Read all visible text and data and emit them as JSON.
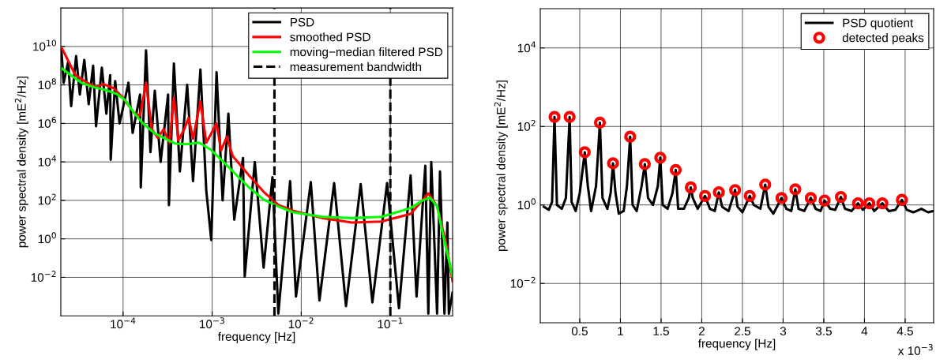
{
  "chart_data": [
    {
      "type": "line",
      "xlabel": "frequency [Hz]",
      "ylabel": "power spectral density [mE$^{2}$/Hz]",
      "log": "xy",
      "grid": true,
      "legend": "top right",
      "line_style": "solid",
      "marker": "none",
      "xlim": [
        2e-05,
        0.5
      ],
      "ylim": [
        0.0001,
        1000000000000.0
      ],
      "xticks": [
        {
          "value": 0.0001,
          "label": "10$^{−4}$"
        },
        {
          "value": 0.001,
          "label": "10$^{−3}$"
        },
        {
          "value": 0.01,
          "label": "10$^{−2}$"
        },
        {
          "value": 0.1,
          "label": "10$^{−1}$"
        }
      ],
      "yticks": [
        {
          "value": 0.01,
          "label": "10$^{−2}$"
        },
        {
          "value": 1,
          "label": "10$^{0}$"
        },
        {
          "value": 100,
          "label": "10$^{2}$"
        },
        {
          "value": 10000,
          "label": "10$^{4}$"
        },
        {
          "value": 1000000,
          "label": "10$^{6}$"
        },
        {
          "value": 100000000,
          "label": "10$^{8}$"
        },
        {
          "value": 10000000000,
          "label": "10$^{10}$"
        }
      ],
      "ref_lines": [
        {
          "axis": "x",
          "value": 0.005,
          "label": "measurement bandwidth",
          "color": "#000000",
          "line_style": "dashed"
        },
        {
          "axis": "x",
          "value": 0.1,
          "color": "#000000",
          "line_style": "dashed"
        }
      ],
      "series": [
        {
          "type": "line",
          "name": "PSD",
          "color": "#000000",
          "x": [
            2.03e-05,
            2.15e-05,
            2.42e-05,
            2.61e-05,
            2.97e-05,
            3.27e-05,
            3.67e-05,
            4.11e-05,
            4.61e-05,
            4.97e-05,
            5.78e-05,
            6.49e-05,
            7.16e-05,
            7.26e-05,
            8.15e-05,
            9.13e-05,
            0.000115,
            0.000128,
            0.000155,
            0.000158,
            0.000181,
            0.000203,
            0.000227,
            0.000264,
            0.00032,
            0.000327,
            0.000372,
            0.000434,
            0.000524,
            0.00061,
            0.000738,
            0.000859,
            0.000977,
            0.00112,
            0.00131,
            0.00152,
            0.00177,
            0.00222,
            0.00232,
            0.00301,
            0.00378,
            0.00475,
            0.00553,
            0.0075,
            0.00873,
            0.0128,
            0.016,
            0.0234,
            0.0318,
            0.0465,
            0.0629,
            0.092,
            0.125,
            0.169,
            0.197,
            0.247,
            0.267,
            0.288,
            0.335,
            0.361,
            0.405,
            0.437,
            0.454,
            0.5
          ],
          "values": [
            6300000000.0,
            130000000.0,
            1600000000.0,
            7900000.0,
            3200000000.0,
            32000000.0,
            2000000000.0,
            10000000.0,
            1000000000.0,
            710000.0,
            790000000.0,
            3200000.0,
            320000000.0,
            13000.0,
            160000000.0,
            1000000.0,
            130000000.0,
            320000.0,
            32000000.0,
            470,
            6300000000.0,
            32000.0,
            50000000.0,
            10000.0,
            32000000.0,
            56,
            1300000000.0,
            3200,
            100000000.0,
            1000,
            630000000.0,
            320,
            0.87,
            460000000.0,
            100,
            3200000.0,
            10,
            16000.0,
            0.011,
            10000.0,
            0.032,
            1600,
            0.00013,
            1000,
            0.001,
            890,
            0.00063,
            790,
            0.00032,
            710,
            0.0005,
            790,
            0.00025,
            2000,
            0.001,
            6300,
            0.00013,
            10000.0,
            0.00013,
            3200,
            0.00013,
            7.1,
            0.00013,
            0.0016
          ]
        },
        {
          "type": "line",
          "name": "smoothed PSD",
          "color": "#ff0000",
          "x": [
            2.07e-05,
            2.92e-05,
            3.96e-05,
            4.97e-05,
            6.01e-05,
            7.84e-05,
            9.85e-05,
            0.000133,
            0.000155,
            0.000181,
            0.00021,
            0.000245,
            0.000285,
            0.000332,
            0.000372,
            0.000417,
            0.000486,
            0.000544,
            0.00061,
            0.000738,
            0.000859,
            0.00112,
            0.00126,
            0.00146,
            0.0017,
            0.00259,
            0.00378,
            0.00553,
            0.00809,
            0.0173,
            0.037,
            0.0791,
            0.169,
            0.267,
            0.335,
            0.421,
            0.5
          ],
          "values": [
            7600000000.0,
            320000000.0,
            130000000.0,
            79000000.0,
            110000000.0,
            68000000.0,
            23000000.0,
            3500000.0,
            2500000.0,
            130000000.0,
            500000.0,
            180000.0,
            500000.0,
            100000.0,
            23000000.0,
            130000.0,
            500000.0,
            2000000.0,
            160000.0,
            14000000.0,
            100000.0,
            1000000.0,
            40000.0,
            200000.0,
            20000.0,
            2000,
            280,
            58,
            29,
            12,
            7.1,
            7.9,
            20,
            230,
            50,
            0.63,
            0.0063
          ]
        },
        {
          "type": "line",
          "name": "moving−median filtered PSD",
          "color": "#00ff00",
          "x": [
            2e-05,
            2.7e-05,
            3.4e-05,
            4.61e-05,
            6.24e-05,
            8.46e-05,
            0.000106,
            0.000133,
            0.000167,
            0.000227,
            0.000285,
            0.000387,
            0.000524,
            0.00071,
            0.000962,
            0.00131,
            0.00177,
            0.00259,
            0.00378,
            0.00553,
            0.00809,
            0.0173,
            0.037,
            0.0791,
            0.169,
            0.229,
            0.277,
            0.335,
            0.39,
            0.454,
            0.5
          ],
          "values": [
            790000000.0,
            280000000.0,
            130000000.0,
            79000000.0,
            56000000.0,
            34000000.0,
            16000000.0,
            3500000.0,
            1000000.0,
            300000.0,
            180000.0,
            89000.0,
            83000.0,
            100000.0,
            44000.0,
            11000.0,
            2700,
            470,
            110,
            48,
            24,
            14,
            12,
            14,
            40,
            98,
            140,
            50,
            1.6,
            0.079,
            0.011
          ]
        }
      ]
    },
    {
      "type": "line",
      "xlabel": "frequency [Hz]",
      "ylabel": "power spectral density [mE$^{2}$/Hz]",
      "log": "y",
      "grid": true,
      "legend": "top right",
      "line_style": "solid",
      "annotations": [
        "x 10$^{−3}$"
      ],
      "xlim": [
        0.015,
        4.85
      ],
      "ylim": [
        0.001,
        100000
      ],
      "xticks": [
        0.5,
        1,
        1.5,
        2,
        2.5,
        3,
        3.5,
        4,
        4.5
      ],
      "yticks": [
        {
          "value": 0.01,
          "label": "10$^{−2}$"
        },
        {
          "value": 1,
          "label": "10$^{0}$"
        },
        {
          "value": 100,
          "label": "10$^{2}$"
        },
        {
          "value": 10000,
          "label": "10$^{4}$"
        }
      ],
      "series": [
        {
          "type": "line",
          "name": "PSD quotient",
          "color": "#000000",
          "marker": "none",
          "x": [
            0.06,
            0.12,
            0.16,
            0.19,
            0.22,
            0.28,
            0.33,
            0.376,
            0.4,
            0.45,
            0.5,
            0.562,
            0.6,
            0.64,
            0.7,
            0.748,
            0.78,
            0.84,
            0.88,
            0.909,
            0.94,
            0.98,
            1.04,
            1.08,
            1.12,
            1.15,
            1.2,
            1.26,
            1.3,
            1.34,
            1.4,
            1.46,
            1.49,
            1.52,
            1.58,
            1.64,
            1.68,
            1.71,
            1.78,
            1.84,
            1.865,
            1.89,
            1.95,
            2.04,
            2.1,
            2.16,
            2.21,
            2.25,
            2.33,
            2.41,
            2.44,
            2.5,
            2.59,
            2.64,
            2.72,
            2.78,
            2.82,
            2.88,
            2.98,
            3.04,
            3.1,
            3.15,
            3.19,
            3.26,
            3.34,
            3.4,
            3.46,
            3.51,
            3.58,
            3.64,
            3.71,
            3.76,
            3.84,
            3.92,
            3.98,
            4.06,
            4.12,
            4.22,
            4.3,
            4.38,
            4.46,
            4.52,
            4.6,
            4.7,
            4.78,
            4.85
          ],
          "values": [
            0.9,
            0.75,
            1.2,
            175,
            1.0,
            0.8,
            1.5,
            175,
            1.2,
            0.7,
            2,
            22,
            3,
            0.7,
            3,
            125,
            1.5,
            0.8,
            2,
            11.5,
            2,
            0.6,
            0.7,
            3,
            55,
            1,
            0.7,
            3,
            11,
            1.5,
            1.0,
            3,
            16,
            1,
            0.8,
            2,
            7.8,
            0.8,
            0.8,
            1.5,
            2.8,
            1.5,
            0.8,
            1.7,
            0.8,
            0.7,
            2.1,
            0.9,
            0.7,
            2.4,
            0.9,
            0.65,
            1.7,
            1.0,
            0.8,
            3.3,
            0.9,
            0.6,
            1.5,
            0.8,
            0.7,
            2.5,
            0.8,
            0.7,
            1.5,
            0.8,
            0.7,
            1.3,
            0.8,
            0.75,
            1.6,
            0.8,
            0.7,
            1.1,
            0.75,
            1.1,
            0.7,
            1.1,
            0.7,
            0.75,
            1.35,
            0.75,
            0.65,
            0.8,
            0.65,
            0.7
          ]
        },
        {
          "type": "scatter",
          "name": "detected peaks",
          "color": "#ff0000",
          "marker": "circle",
          "x": [
            0.19,
            0.376,
            0.562,
            0.748,
            0.909,
            1.12,
            1.3,
            1.49,
            1.68,
            1.865,
            2.04,
            2.21,
            2.41,
            2.59,
            2.78,
            2.98,
            3.15,
            3.34,
            3.51,
            3.71,
            3.92,
            4.06,
            4.22,
            4.46
          ],
          "values": [
            175,
            175,
            22,
            125,
            11.5,
            55,
            11,
            16,
            7.8,
            2.8,
            1.7,
            2.1,
            2.4,
            1.7,
            3.3,
            1.5,
            2.5,
            1.5,
            1.3,
            1.6,
            1.1,
            1.1,
            1.1,
            1.35
          ]
        }
      ]
    }
  ]
}
